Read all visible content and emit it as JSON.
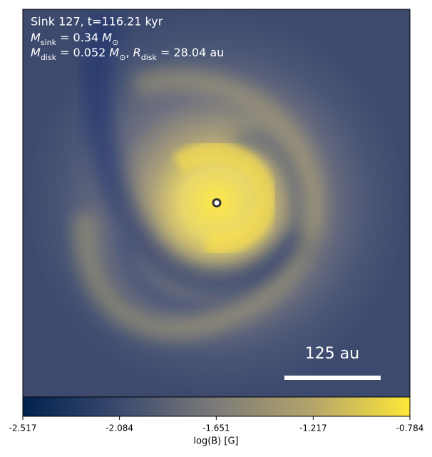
{
  "chart_data": {
    "type": "image-map",
    "title": "Sink 127, t=116.21 kyr",
    "annotation_lines": [
      [
        "M",
        "sink",
        " = 0.34 ",
        "M",
        "⊙"
      ],
      [
        "M",
        "disk",
        " = 0.052 ",
        "M",
        "⊙",
        ", ",
        "R",
        "disk",
        " = 28.04 au"
      ]
    ],
    "scale_bar_label": "125 au",
    "colorbar": {
      "label": "log(B) [G]",
      "lim": [
        -2.517,
        -0.784
      ],
      "ticks": [
        -2.517,
        -2.084,
        -1.651,
        -1.217,
        -0.784
      ],
      "colormap": [
        "#00224e",
        "#3b4a6f",
        "#7c7b78",
        "#b5a56a",
        "#fee838"
      ]
    }
  }
}
